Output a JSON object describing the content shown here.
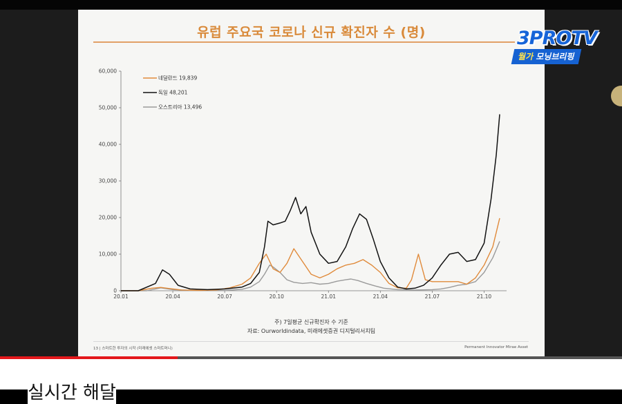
{
  "slide": {
    "title": "유럽 주요국 코로나 신규 확진자 수 (명)",
    "note_line1": "주) 7일평균 신규확진자 수 기준",
    "note_line2": "자료: Ourworldindata, 미래에셋증권 디지털리서치팀",
    "footer_left": "13 | 스마트한 투자의 시작 (미래에셋 스마트머니)",
    "footer_right": "Permanent Innovator Mirae Asset"
  },
  "logo": {
    "main": "3PROTV",
    "sub_prefix": "월가",
    "sub_rest": " 모닝브리핑"
  },
  "player": {
    "progress": 0.285
  },
  "below": {
    "title": "실시간 해달"
  },
  "colors": {
    "nl": "#e08a3a",
    "de": "#111111",
    "at": "#9a9a9a",
    "accent": "#d98a3a"
  },
  "chart_data": {
    "type": "line",
    "title": "유럽 주요국 코로나 신규 확진자 수 (명)",
    "xlabel": "",
    "ylabel": "",
    "ylim": [
      0,
      60000
    ],
    "yticks": [
      "0",
      "10,000",
      "20,000",
      "30,000",
      "40,000",
      "50,000",
      "60,000"
    ],
    "xticks": [
      "20.01",
      "20.04",
      "20.07",
      "20.10",
      "21.01",
      "21.04",
      "21.07",
      "21.10"
    ],
    "x_unit": "months since 20.01",
    "legend": "top-left",
    "grid": false,
    "series": [
      {
        "name": "네덜란드 19,839",
        "key": "nl",
        "points": [
          [
            0,
            0
          ],
          [
            1,
            0
          ],
          [
            1.8,
            700
          ],
          [
            2.3,
            900
          ],
          [
            2.8,
            600
          ],
          [
            3.5,
            200
          ],
          [
            4.5,
            100
          ],
          [
            5.5,
            200
          ],
          [
            6.3,
            800
          ],
          [
            7,
            1800
          ],
          [
            7.5,
            3500
          ],
          [
            8,
            7500
          ],
          [
            8.4,
            10000
          ],
          [
            8.8,
            6000
          ],
          [
            9.2,
            5000
          ],
          [
            9.6,
            7500
          ],
          [
            10,
            11500
          ],
          [
            10.5,
            8000
          ],
          [
            11,
            4500
          ],
          [
            11.5,
            3500
          ],
          [
            12,
            4500
          ],
          [
            12.5,
            6000
          ],
          [
            13,
            7000
          ],
          [
            13.5,
            7500
          ],
          [
            14,
            8500
          ],
          [
            14.5,
            7000
          ],
          [
            15,
            5000
          ],
          [
            15.5,
            2000
          ],
          [
            16,
            800
          ],
          [
            16.5,
            700
          ],
          [
            16.8,
            3000
          ],
          [
            17.2,
            10000
          ],
          [
            17.6,
            3000
          ],
          [
            18,
            2500
          ],
          [
            18.5,
            2500
          ],
          [
            19,
            2500
          ],
          [
            19.5,
            2500
          ],
          [
            20,
            1800
          ],
          [
            20.5,
            3500
          ],
          [
            21,
            7000
          ],
          [
            21.5,
            12000
          ],
          [
            21.9,
            19839
          ]
        ]
      },
      {
        "name": "독일 48,201",
        "key": "de",
        "points": [
          [
            0,
            0
          ],
          [
            1,
            0
          ],
          [
            2,
            2000
          ],
          [
            2.4,
            5700
          ],
          [
            2.8,
            4500
          ],
          [
            3.3,
            1500
          ],
          [
            4,
            500
          ],
          [
            5,
            300
          ],
          [
            6,
            500
          ],
          [
            7,
            1000
          ],
          [
            7.5,
            2000
          ],
          [
            8,
            5000
          ],
          [
            8.3,
            12000
          ],
          [
            8.5,
            19000
          ],
          [
            8.8,
            18000
          ],
          [
            9.2,
            18500
          ],
          [
            9.5,
            19000
          ],
          [
            9.8,
            22000
          ],
          [
            10.1,
            25500
          ],
          [
            10.4,
            21000
          ],
          [
            10.7,
            23000
          ],
          [
            11,
            16000
          ],
          [
            11.5,
            10000
          ],
          [
            12,
            7500
          ],
          [
            12.5,
            8000
          ],
          [
            13,
            12000
          ],
          [
            13.4,
            17000
          ],
          [
            13.8,
            21000
          ],
          [
            14.2,
            19500
          ],
          [
            14.6,
            14000
          ],
          [
            15,
            8000
          ],
          [
            15.5,
            3500
          ],
          [
            16,
            1000
          ],
          [
            16.5,
            500
          ],
          [
            17,
            700
          ],
          [
            17.5,
            1500
          ],
          [
            18,
            3500
          ],
          [
            18.5,
            7000
          ],
          [
            19,
            10000
          ],
          [
            19.5,
            10500
          ],
          [
            20,
            8000
          ],
          [
            20.5,
            8500
          ],
          [
            21,
            13000
          ],
          [
            21.4,
            25000
          ],
          [
            21.7,
            37000
          ],
          [
            21.9,
            48201
          ]
        ]
      },
      {
        "name": "오스트리아 13,496",
        "key": "at",
        "points": [
          [
            0,
            0
          ],
          [
            1.5,
            0
          ],
          [
            2.3,
            800
          ],
          [
            3,
            300
          ],
          [
            4,
            100
          ],
          [
            6,
            100
          ],
          [
            7,
            400
          ],
          [
            7.5,
            1000
          ],
          [
            8,
            2500
          ],
          [
            8.3,
            4500
          ],
          [
            8.6,
            7000
          ],
          [
            8.8,
            6500
          ],
          [
            9.2,
            5000
          ],
          [
            9.6,
            3000
          ],
          [
            10,
            2300
          ],
          [
            10.5,
            2000
          ],
          [
            11,
            2200
          ],
          [
            11.5,
            1800
          ],
          [
            12,
            2000
          ],
          [
            12.5,
            2600
          ],
          [
            13,
            3000
          ],
          [
            13.3,
            3200
          ],
          [
            13.7,
            2800
          ],
          [
            14.2,
            2000
          ],
          [
            14.7,
            1300
          ],
          [
            15.2,
            700
          ],
          [
            16,
            300
          ],
          [
            17,
            200
          ],
          [
            18,
            300
          ],
          [
            18.5,
            500
          ],
          [
            19,
            900
          ],
          [
            19.5,
            1500
          ],
          [
            20,
            1800
          ],
          [
            20.5,
            2500
          ],
          [
            21,
            5000
          ],
          [
            21.5,
            9000
          ],
          [
            21.9,
            13496
          ]
        ]
      }
    ]
  }
}
